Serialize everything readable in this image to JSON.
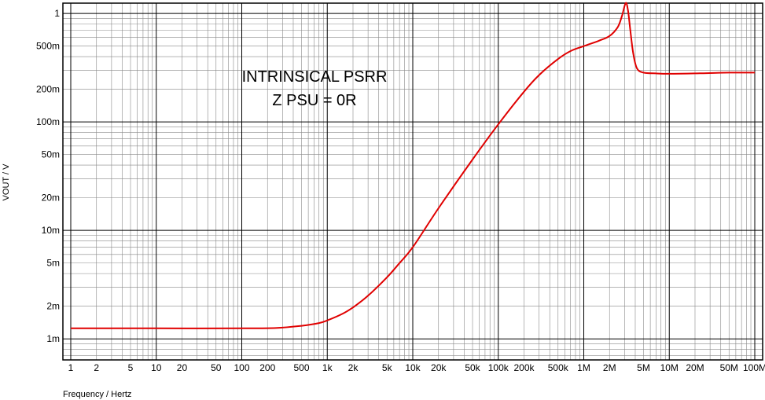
{
  "chart_data": {
    "type": "line",
    "title": "",
    "xlabel": "Frequency / Hertz",
    "ylabel": "VOUT / V",
    "xscale": "log",
    "yscale": "log",
    "xlim": [
      1,
      100000000
    ],
    "ylim": [
      0.001,
      1
    ],
    "grid": true,
    "x_ticks": [
      {
        "value": 1,
        "label": "1"
      },
      {
        "value": 2,
        "label": "2"
      },
      {
        "value": 5,
        "label": "5"
      },
      {
        "value": 10,
        "label": "10"
      },
      {
        "value": 20,
        "label": "20"
      },
      {
        "value": 50,
        "label": "50"
      },
      {
        "value": 100,
        "label": "100"
      },
      {
        "value": 200,
        "label": "200"
      },
      {
        "value": 500,
        "label": "500"
      },
      {
        "value": 1000,
        "label": "1k"
      },
      {
        "value": 2000,
        "label": "2k"
      },
      {
        "value": 5000,
        "label": "5k"
      },
      {
        "value": 10000,
        "label": "10k"
      },
      {
        "value": 20000,
        "label": "20k"
      },
      {
        "value": 50000,
        "label": "50k"
      },
      {
        "value": 100000,
        "label": "100k"
      },
      {
        "value": 200000,
        "label": "200k"
      },
      {
        "value": 500000,
        "label": "500k"
      },
      {
        "value": 1000000,
        "label": "1M"
      },
      {
        "value": 2000000,
        "label": "2M"
      },
      {
        "value": 5000000,
        "label": "5M"
      },
      {
        "value": 10000000,
        "label": "10M"
      },
      {
        "value": 20000000,
        "label": "20M"
      },
      {
        "value": 50000000,
        "label": "50M"
      },
      {
        "value": 100000000,
        "label": "100M"
      }
    ],
    "y_ticks": [
      {
        "value": 0.001,
        "label": "1m"
      },
      {
        "value": 0.002,
        "label": "2m"
      },
      {
        "value": 0.005,
        "label": "5m"
      },
      {
        "value": 0.01,
        "label": "10m"
      },
      {
        "value": 0.02,
        "label": "20m"
      },
      {
        "value": 0.05,
        "label": "50m"
      },
      {
        "value": 0.1,
        "label": "100m"
      },
      {
        "value": 0.2,
        "label": "200m"
      },
      {
        "value": 0.5,
        "label": "500m"
      },
      {
        "value": 1,
        "label": "1"
      }
    ],
    "annotations": [
      "INTRINSICAL PSRR",
      "Z PSU = 0R"
    ],
    "series": [
      {
        "color": "#e00000",
        "x": [
          1,
          10,
          100,
          250,
          500,
          800,
          1000,
          1500,
          2000,
          3000,
          5000,
          7000,
          10000,
          20000,
          50000,
          100000,
          200000,
          300000,
          500000,
          700000,
          1000000,
          1500000,
          2000000,
          2500000,
          2800000,
          3100000,
          3300000,
          3500000,
          3800000,
          4200000,
          5000000,
          7000000,
          10000000,
          20000000,
          50000000,
          100000000
        ],
        "y": [
          0.00125,
          0.00125,
          0.00125,
          0.00126,
          0.00132,
          0.0014,
          0.00148,
          0.0017,
          0.00195,
          0.0025,
          0.0037,
          0.005,
          0.007,
          0.016,
          0.045,
          0.095,
          0.19,
          0.27,
          0.38,
          0.45,
          0.5,
          0.56,
          0.62,
          0.75,
          0.95,
          1.25,
          1.05,
          0.7,
          0.42,
          0.31,
          0.285,
          0.28,
          0.278,
          0.28,
          0.285,
          0.285
        ]
      }
    ],
    "colors": {
      "grid": "#000000",
      "line": "#e00000",
      "background": "#ffffff"
    }
  }
}
